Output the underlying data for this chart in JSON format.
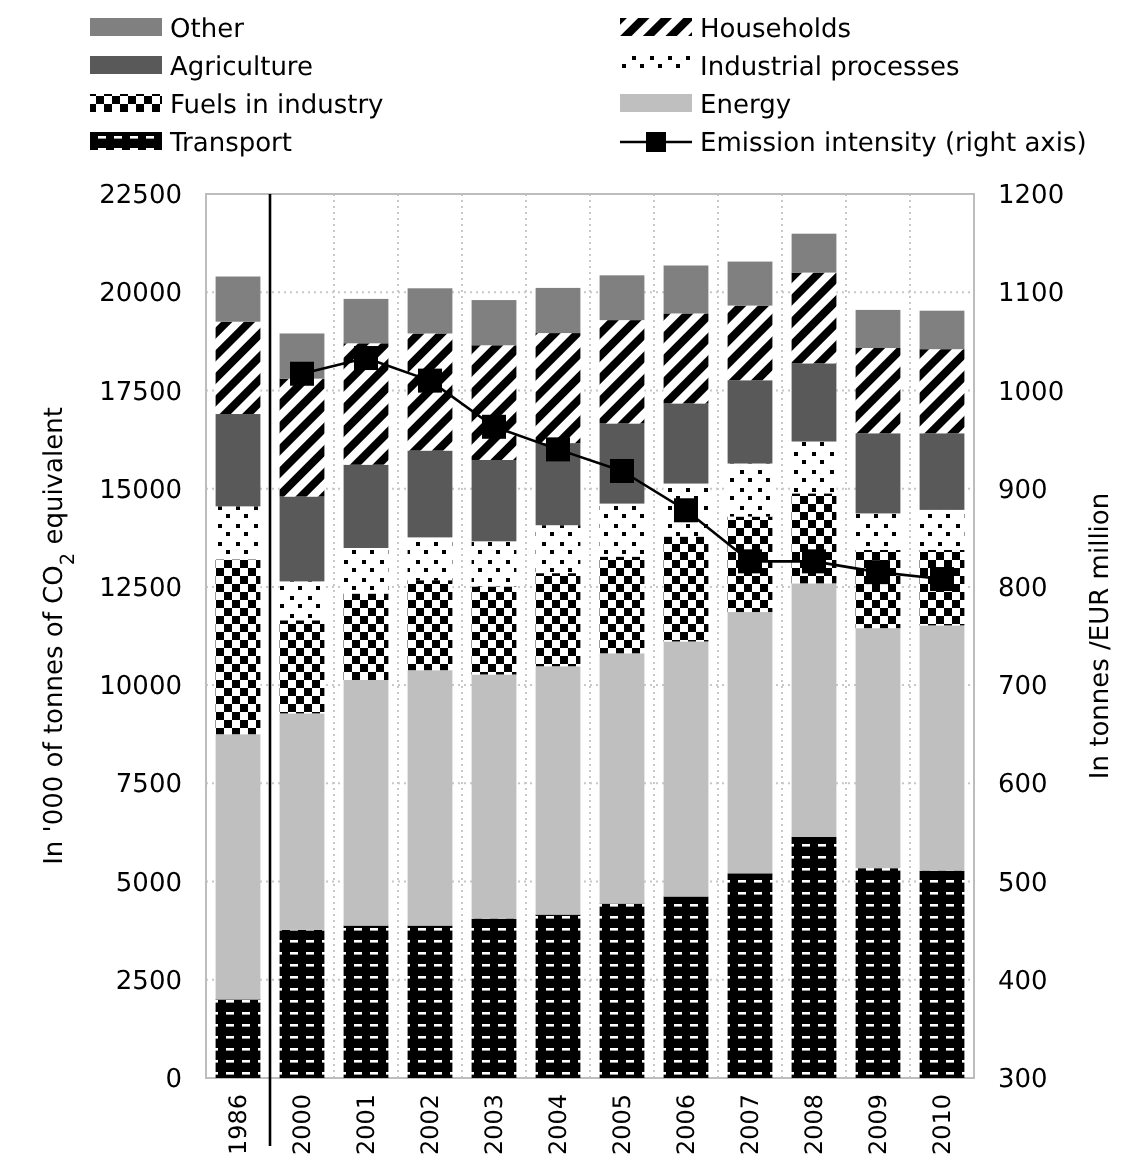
{
  "chart_data": {
    "type": "bar",
    "stacked": true,
    "legend": "top",
    "grid": true,
    "ylabel": "In '000 of tonnes of CO$_{2}$ equivalent",
    "y2label": "In tonnes /EUR million",
    "categories": [
      "1986",
      "2000",
      "2001",
      "2002",
      "2003",
      "2004",
      "2005",
      "2006",
      "2007",
      "2008",
      "2009",
      "2010"
    ],
    "ylim": [
      0,
      22500
    ],
    "yticks": [
      0,
      2500,
      5000,
      7500,
      10000,
      12500,
      15000,
      17500,
      20000,
      22500
    ],
    "y2lim": [
      300,
      1200
    ],
    "y2ticks": [
      300,
      400,
      500,
      600,
      700,
      800,
      900,
      1000,
      1100,
      1200
    ],
    "ref_lines": [
      {
        "axis": "x",
        "value": "1986",
        "color": "#000000"
      }
    ],
    "series": [
      {
        "name": "Transport",
        "color": "#000000",
        "values": [
          2000,
          3770,
          3880,
          3880,
          4060,
          4160,
          4440,
          4620,
          5210,
          6140,
          5340,
          5280
        ]
      },
      {
        "name": "Energy",
        "color": "#bfbfbf",
        "values": [
          6750,
          5510,
          6250,
          6500,
          6210,
          6320,
          6370,
          6490,
          6650,
          6450,
          6110,
          6240
        ]
      },
      {
        "name": "Fuels in industry",
        "color": "#000000",
        "values": [
          4450,
          2370,
          2200,
          2290,
          2240,
          2370,
          2460,
          2670,
          2430,
          2290,
          1990,
          1920
        ]
      },
      {
        "name": "Industrial processes",
        "color": "#ffffff",
        "values": [
          1350,
          990,
          1160,
          1090,
          1150,
          1220,
          1350,
          1350,
          1350,
          1320,
          930,
          1020
        ]
      },
      {
        "name": "Agriculture",
        "color": "#595959",
        "values": [
          2350,
          2160,
          2120,
          2210,
          2070,
          2090,
          2040,
          2040,
          2120,
          1990,
          2040,
          1950
        ]
      },
      {
        "name": "Households",
        "color": "#000000",
        "values": [
          2350,
          3000,
          3090,
          2980,
          2920,
          2800,
          2630,
          2290,
          1900,
          2310,
          2170,
          2140
        ]
      },
      {
        "name": "Other",
        "color": "#808080",
        "values": [
          1150,
          1150,
          1130,
          1150,
          1150,
          1150,
          1140,
          1220,
          1120,
          990,
          970,
          980
        ]
      },
      {
        "name": "Emission intensity (right axis)",
        "type": "line",
        "axis": "y2",
        "color": "#000000",
        "marker": "square",
        "values": [
          null,
          1017,
          1033,
          1010,
          963,
          940,
          918,
          878,
          826,
          826,
          815,
          808
        ]
      }
    ]
  }
}
